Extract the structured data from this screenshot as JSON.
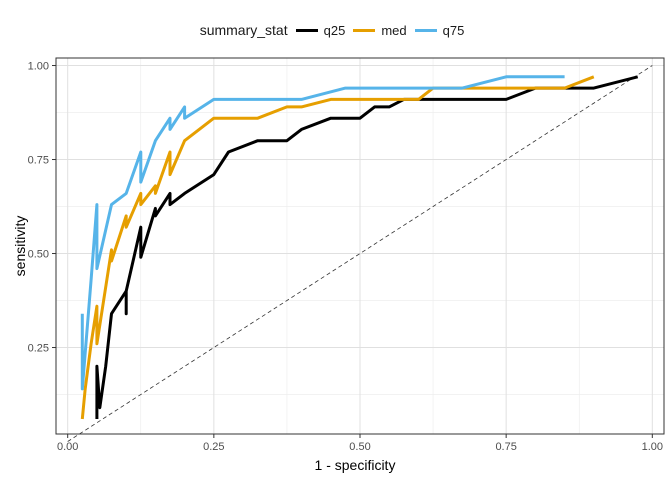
{
  "chart_data": {
    "type": "line",
    "xlabel": "1 - specificity",
    "ylabel": "sensitivity",
    "xlim": [
      -0.02,
      1.02
    ],
    "ylim": [
      0.02,
      1.02
    ],
    "x_ticks": [
      0.0,
      0.25,
      0.5,
      0.75,
      1.0
    ],
    "x_tick_labels": [
      "0.00",
      "0.25",
      "0.50",
      "0.75",
      "1.00"
    ],
    "y_ticks": [
      0.25,
      0.5,
      0.75,
      1.0
    ],
    "y_tick_labels": [
      "0.25",
      "0.50",
      "0.75",
      "1.00"
    ],
    "grid": true,
    "legend_position": "top",
    "legend_title": "summary_stat",
    "reference_line": {
      "from": [
        0,
        0
      ],
      "to": [
        1,
        1
      ],
      "style": "dashed"
    },
    "series": [
      {
        "name": "q25",
        "color": "#000000",
        "points": [
          [
            0.05,
            0.06
          ],
          [
            0.05,
            0.2
          ],
          [
            0.055,
            0.09
          ],
          [
            0.065,
            0.2
          ],
          [
            0.075,
            0.34
          ],
          [
            0.1,
            0.4
          ],
          [
            0.1,
            0.34
          ],
          [
            0.1,
            0.4
          ],
          [
            0.125,
            0.57
          ],
          [
            0.125,
            0.49
          ],
          [
            0.15,
            0.62
          ],
          [
            0.15,
            0.6
          ],
          [
            0.175,
            0.66
          ],
          [
            0.175,
            0.63
          ],
          [
            0.2,
            0.66
          ],
          [
            0.25,
            0.71
          ],
          [
            0.275,
            0.77
          ],
          [
            0.325,
            0.8
          ],
          [
            0.375,
            0.8
          ],
          [
            0.4,
            0.83
          ],
          [
            0.45,
            0.86
          ],
          [
            0.5,
            0.86
          ],
          [
            0.525,
            0.89
          ],
          [
            0.55,
            0.89
          ],
          [
            0.575,
            0.91
          ],
          [
            0.75,
            0.91
          ],
          [
            0.8,
            0.94
          ],
          [
            0.9,
            0.94
          ],
          [
            0.975,
            0.97
          ]
        ]
      },
      {
        "name": "med",
        "color": "#E69F00",
        "points": [
          [
            0.025,
            0.06
          ],
          [
            0.03,
            0.14
          ],
          [
            0.04,
            0.26
          ],
          [
            0.05,
            0.36
          ],
          [
            0.05,
            0.26
          ],
          [
            0.075,
            0.51
          ],
          [
            0.075,
            0.48
          ],
          [
            0.1,
            0.6
          ],
          [
            0.1,
            0.57
          ],
          [
            0.125,
            0.66
          ],
          [
            0.125,
            0.63
          ],
          [
            0.15,
            0.68
          ],
          [
            0.15,
            0.66
          ],
          [
            0.175,
            0.77
          ],
          [
            0.175,
            0.71
          ],
          [
            0.2,
            0.8
          ],
          [
            0.25,
            0.86
          ],
          [
            0.325,
            0.86
          ],
          [
            0.375,
            0.89
          ],
          [
            0.4,
            0.89
          ],
          [
            0.45,
            0.91
          ],
          [
            0.6,
            0.91
          ],
          [
            0.625,
            0.94
          ],
          [
            0.85,
            0.94
          ],
          [
            0.9,
            0.97
          ]
        ]
      },
      {
        "name": "q75",
        "color": "#56B4E9",
        "points": [
          [
            0.025,
            0.34
          ],
          [
            0.025,
            0.14
          ],
          [
            0.04,
            0.43
          ],
          [
            0.05,
            0.63
          ],
          [
            0.05,
            0.46
          ],
          [
            0.075,
            0.63
          ],
          [
            0.1,
            0.66
          ],
          [
            0.125,
            0.77
          ],
          [
            0.125,
            0.69
          ],
          [
            0.15,
            0.8
          ],
          [
            0.175,
            0.86
          ],
          [
            0.175,
            0.83
          ],
          [
            0.2,
            0.89
          ],
          [
            0.2,
            0.86
          ],
          [
            0.25,
            0.91
          ],
          [
            0.4,
            0.91
          ],
          [
            0.475,
            0.94
          ],
          [
            0.675,
            0.94
          ],
          [
            0.75,
            0.97
          ],
          [
            0.85,
            0.97
          ]
        ]
      }
    ]
  }
}
